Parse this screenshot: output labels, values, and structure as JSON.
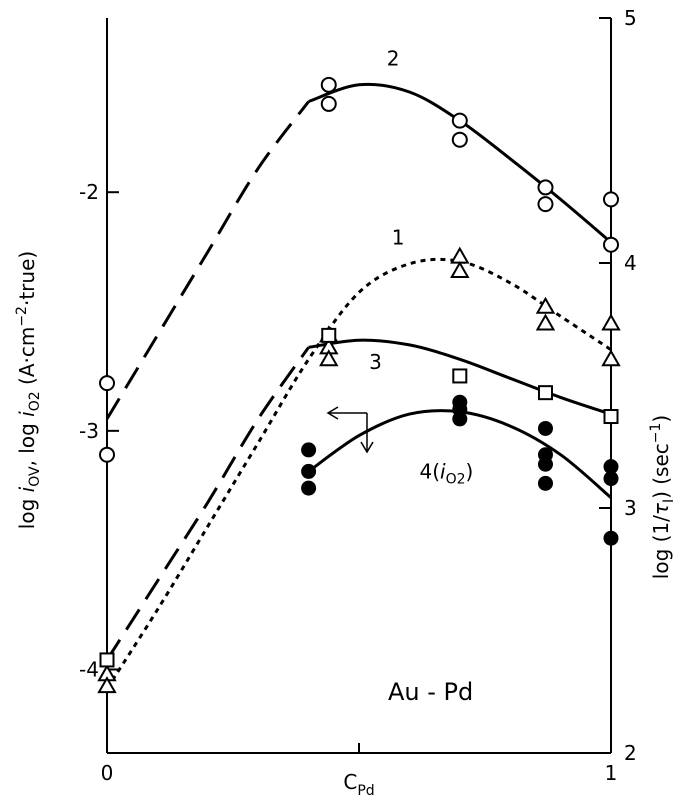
{
  "chart_data": {
    "type": "scatter",
    "title": "",
    "annotation": "Au - Pd",
    "xlabel": {
      "main": "C",
      "sub": "Pd"
    },
    "xlim": [
      0,
      1
    ],
    "x_ticks": [
      {
        "value": 0,
        "label": "0"
      },
      {
        "value": 0.5,
        "label": ""
      },
      {
        "value": 1,
        "label": "1"
      }
    ],
    "ylim_left": [
      -4.35,
      -1.27
    ],
    "ylim_right": [
      2,
      5
    ],
    "y_left_ticks": [
      {
        "value": -2,
        "label": "-2"
      },
      {
        "value": -3,
        "label": "-3"
      },
      {
        "value": -4,
        "label": "-4"
      }
    ],
    "y_right_ticks": [
      {
        "value": 2,
        "label": "2"
      },
      {
        "value": 3,
        "label": "3"
      },
      {
        "value": 4,
        "label": "4"
      },
      {
        "value": 5,
        "label": "5"
      }
    ],
    "ylabel_left": {
      "parts": [
        "log ",
        "i",
        "OV",
        ",  log ",
        "i",
        "O2",
        "  (A·cm",
        "−2",
        "·true)"
      ]
    },
    "ylabel_right": {
      "parts": [
        "log  (1/",
        "τ",
        "I",
        ")   (sec",
        "−1",
        ")"
      ]
    },
    "series": [
      {
        "name": "1",
        "label_x": 0.565,
        "label_y": -2.22,
        "axis": "left",
        "marker": "triangle",
        "line": "dotted",
        "color": "#000000",
        "points": [
          [
            0,
            -4.02
          ],
          [
            0,
            -4.07
          ],
          [
            0.44,
            -2.6
          ],
          [
            0.44,
            -2.65
          ],
          [
            0.44,
            -2.7
          ],
          [
            0.7,
            -2.27
          ],
          [
            0.7,
            -2.33
          ],
          [
            0.87,
            -2.48
          ],
          [
            0.87,
            -2.55
          ],
          [
            1,
            -2.55
          ],
          [
            1,
            -2.7
          ]
        ],
        "curve": [
          [
            0,
            -4.08
          ],
          [
            0.1,
            -3.75
          ],
          [
            0.2,
            -3.4
          ],
          [
            0.3,
            -3.05
          ],
          [
            0.4,
            -2.7
          ],
          [
            0.5,
            -2.42
          ],
          [
            0.6,
            -2.3
          ],
          [
            0.7,
            -2.29
          ],
          [
            0.8,
            -2.38
          ],
          [
            0.9,
            -2.52
          ],
          [
            1,
            -2.66
          ]
        ]
      },
      {
        "name": "2",
        "label_x": 0.555,
        "label_y": -1.47,
        "axis": "left",
        "marker": "circle",
        "line": "solid_dashed",
        "color": "#000000",
        "points": [
          [
            0,
            -2.8
          ],
          [
            0,
            -3.1
          ],
          [
            0.44,
            -1.55
          ],
          [
            0.44,
            -1.63
          ],
          [
            0.7,
            -1.7
          ],
          [
            0.7,
            -1.78
          ],
          [
            0.87,
            -1.98
          ],
          [
            0.87,
            -2.05
          ],
          [
            1,
            -2.03
          ],
          [
            1,
            -2.22
          ]
        ],
        "dashed_curve": [
          [
            0,
            -2.95
          ],
          [
            0.1,
            -2.6
          ],
          [
            0.2,
            -2.25
          ],
          [
            0.3,
            -1.9
          ],
          [
            0.4,
            -1.62
          ]
        ],
        "curve": [
          [
            0.4,
            -1.62
          ],
          [
            0.5,
            -1.55
          ],
          [
            0.6,
            -1.58
          ],
          [
            0.7,
            -1.7
          ],
          [
            0.8,
            -1.86
          ],
          [
            0.9,
            -2.03
          ],
          [
            1,
            -2.21
          ]
        ]
      },
      {
        "name": "3",
        "label_x": 0.52,
        "label_y": -2.74,
        "axis": "left",
        "marker": "square",
        "line": "solid_dashed",
        "color": "#000000",
        "points": [
          [
            0,
            -3.96
          ],
          [
            0.44,
            -2.6
          ],
          [
            0.7,
            -2.77
          ],
          [
            0.87,
            -2.84
          ],
          [
            1,
            -2.94
          ]
        ],
        "dashed_curve": [
          [
            0,
            -3.96
          ],
          [
            0.1,
            -3.63
          ],
          [
            0.2,
            -3.3
          ],
          [
            0.3,
            -2.95
          ],
          [
            0.4,
            -2.65
          ]
        ],
        "curve": [
          [
            0.4,
            -2.65
          ],
          [
            0.5,
            -2.62
          ],
          [
            0.6,
            -2.64
          ],
          [
            0.7,
            -2.7
          ],
          [
            0.8,
            -2.78
          ],
          [
            0.9,
            -2.86
          ],
          [
            1,
            -2.93
          ]
        ]
      },
      {
        "name": "4(iₒ₂)",
        "label_parts": [
          "4(",
          "i",
          "O2",
          ")"
        ],
        "label_x": 0.62,
        "label_y": -3.2,
        "axis": "left",
        "marker": "filled_circle",
        "line": "solid",
        "color": "#000000",
        "points": [
          [
            0.4,
            -3.08
          ],
          [
            0.4,
            -3.17
          ],
          [
            0.4,
            -3.24
          ],
          [
            0.7,
            -2.88
          ],
          [
            0.7,
            -2.91
          ],
          [
            0.7,
            -2.95
          ],
          [
            0.87,
            -2.99
          ],
          [
            0.87,
            -3.1
          ],
          [
            0.87,
            -3.14
          ],
          [
            0.87,
            -3.22
          ],
          [
            1,
            -3.15
          ],
          [
            1,
            -3.2
          ],
          [
            1,
            -3.45
          ]
        ],
        "curve": [
          [
            0.4,
            -3.17
          ],
          [
            0.5,
            -3.02
          ],
          [
            0.6,
            -2.93
          ],
          [
            0.7,
            -2.92
          ],
          [
            0.8,
            -2.98
          ],
          [
            0.9,
            -3.1
          ],
          [
            1,
            -3.28
          ]
        ]
      }
    ],
    "grid": false
  }
}
